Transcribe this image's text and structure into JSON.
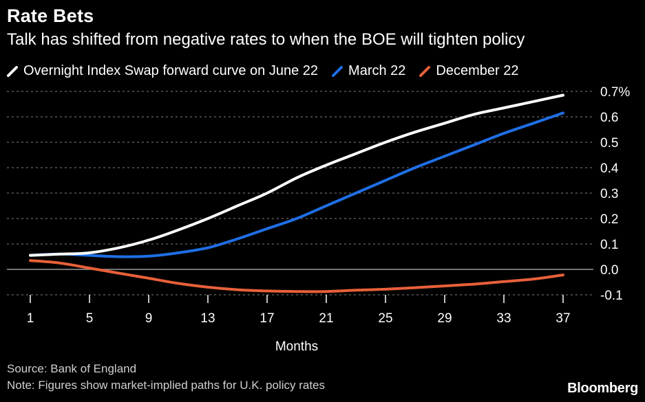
{
  "chart_data": {
    "type": "line",
    "title": "Rate Bets",
    "subtitle": "Talk has shifted from negative rates to when the BOE will tighten policy",
    "xlabel": "Months",
    "ylabel": "",
    "x_ticks": [
      1,
      5,
      9,
      13,
      17,
      21,
      25,
      29,
      33,
      37
    ],
    "y_ticks": [
      -0.1,
      0.0,
      0.1,
      0.2,
      0.3,
      0.4,
      0.5,
      0.6,
      0.7
    ],
    "y_tick_labels": [
      "-0.1",
      "0.0",
      "0.1",
      "0.2",
      "0.3",
      "0.4",
      "0.5",
      "0.6",
      "0.7%"
    ],
    "xlim": [
      1,
      37
    ],
    "ylim": [
      -0.1,
      0.7
    ],
    "grid": true,
    "series": [
      {
        "name": "Overnight Index Swap forward curve on June 22",
        "color": "#ffffff",
        "x": [
          1,
          3,
          5,
          7,
          9,
          11,
          13,
          15,
          17,
          19,
          21,
          23,
          25,
          27,
          29,
          31,
          33,
          35,
          37
        ],
        "values": [
          0.055,
          0.06,
          0.065,
          0.085,
          0.115,
          0.155,
          0.2,
          0.25,
          0.3,
          0.36,
          0.41,
          0.455,
          0.5,
          0.54,
          0.575,
          0.61,
          0.635,
          0.66,
          0.685
        ]
      },
      {
        "name": "March 22",
        "color": "#1f6fe5",
        "x": [
          1,
          3,
          5,
          7,
          9,
          11,
          13,
          15,
          17,
          19,
          21,
          23,
          25,
          27,
          29,
          31,
          33,
          35,
          37
        ],
        "values": [
          0.055,
          0.06,
          0.055,
          0.05,
          0.052,
          0.065,
          0.085,
          0.12,
          0.16,
          0.2,
          0.25,
          0.3,
          0.35,
          0.4,
          0.445,
          0.49,
          0.535,
          0.575,
          0.615
        ]
      },
      {
        "name": "December 22",
        "color": "#e8603a",
        "x": [
          1,
          3,
          5,
          7,
          9,
          11,
          13,
          15,
          17,
          19,
          21,
          23,
          25,
          27,
          29,
          31,
          33,
          35,
          37
        ],
        "values": [
          0.035,
          0.025,
          0.005,
          -0.015,
          -0.035,
          -0.055,
          -0.07,
          -0.08,
          -0.085,
          -0.087,
          -0.087,
          -0.082,
          -0.078,
          -0.072,
          -0.065,
          -0.058,
          -0.048,
          -0.038,
          -0.022
        ]
      }
    ]
  },
  "footer": {
    "source": "Source: Bank of England",
    "note": "Note: Figures show market-implied paths for U.K. policy rates",
    "brand": "Bloomberg"
  }
}
